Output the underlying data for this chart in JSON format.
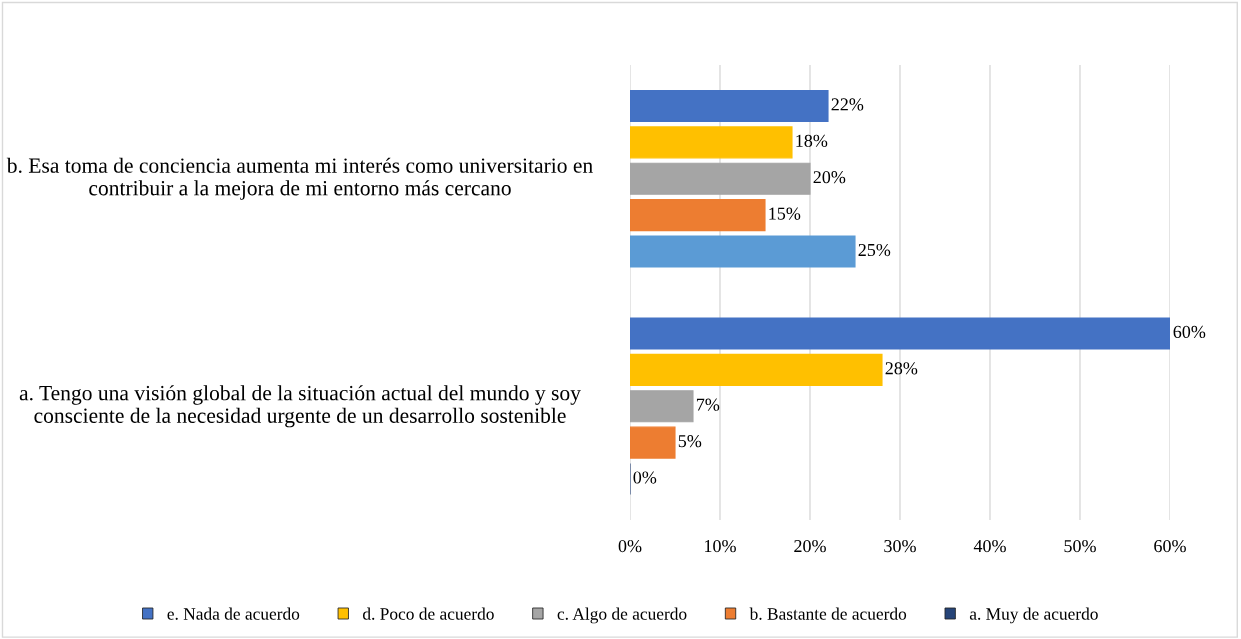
{
  "chart_data": {
    "type": "bar",
    "orientation": "horizontal",
    "categories": [
      "b. Esa toma de conciencia aumenta mi interés como universitario en contribuir a la mejora de mi entorno más cercano",
      "a. Tengo una visión global de la situación actual del mundo y soy consciente de la necesidad urgente de un desarrollo sostenible"
    ],
    "series": [
      {
        "name": "e. Nada de acuerdo",
        "color": "#4472c4",
        "values": [
          22,
          60
        ],
        "value_labels": [
          "22%",
          "60%"
        ]
      },
      {
        "name": "d. Poco de acuerdo",
        "color": "#ffc000",
        "values": [
          18,
          28
        ],
        "value_labels": [
          "18%",
          "28%"
        ]
      },
      {
        "name": "c. Algo de acuerdo",
        "color": "#a5a5a5",
        "values": [
          20,
          7
        ],
        "value_labels": [
          "20%",
          "7%"
        ]
      },
      {
        "name": "b. Bastante de acuerdo",
        "color": "#ed7d31",
        "values": [
          15,
          5
        ],
        "value_labels": [
          "15%",
          "5%"
        ]
      },
      {
        "name": "a. Muy de acuerdo",
        "color": "#264478",
        "colors": [
          "#5b9bd5",
          "#264478"
        ],
        "values": [
          25,
          0
        ],
        "value_labels": [
          "25%",
          "0%"
        ]
      }
    ],
    "xlim": [
      0,
      60
    ],
    "xticks": [
      {
        "value": 0,
        "label": "0%"
      },
      {
        "value": 10,
        "label": "10%"
      },
      {
        "value": 20,
        "label": "20%"
      },
      {
        "value": 30,
        "label": "30%"
      },
      {
        "value": 40,
        "label": "40%"
      },
      {
        "value": 50,
        "label": "50%"
      },
      {
        "value": 60,
        "label": "60%"
      }
    ],
    "grid": "x",
    "legend": "bottom"
  }
}
